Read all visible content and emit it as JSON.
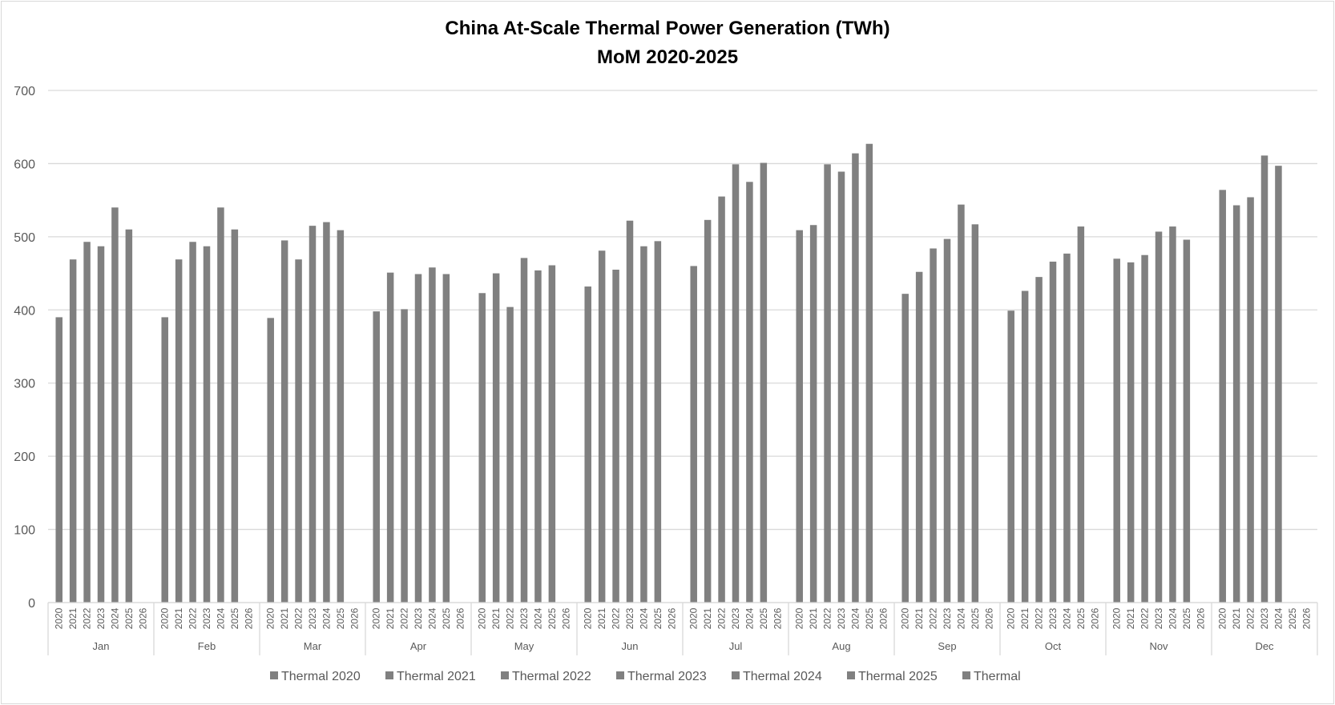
{
  "chart_data": {
    "type": "bar",
    "title": "China At-Scale Thermal Power Generation (TWh)",
    "subtitle": "MoM 2020-2025",
    "ylim": [
      0,
      700
    ],
    "yticks": [
      0,
      100,
      200,
      300,
      400,
      500,
      600,
      700
    ],
    "grid": true,
    "legend_position": "bottom",
    "bar_color": "#808080",
    "grid_color": "#d9d9d9",
    "months": [
      "Jan",
      "Feb",
      "Mar",
      "Apr",
      "May",
      "Jun",
      "Jul",
      "Aug",
      "Sep",
      "Oct",
      "Nov",
      "Dec"
    ],
    "years": [
      "2020",
      "2021",
      "2022",
      "2023",
      "2024",
      "2025",
      "2026"
    ],
    "series": [
      {
        "name": "Thermal 2020"
      },
      {
        "name": "Thermal 2021"
      },
      {
        "name": "Thermal 2022"
      },
      {
        "name": "Thermal 2023"
      },
      {
        "name": "Thermal 2024"
      },
      {
        "name": "Thermal 2025"
      },
      {
        "name": "Thermal"
      }
    ],
    "values": [
      [
        390,
        469,
        493,
        487,
        540,
        510,
        null
      ],
      [
        390,
        469,
        493,
        487,
        540,
        510,
        null
      ],
      [
        389,
        495,
        469,
        515,
        520,
        509,
        null
      ],
      [
        398,
        451,
        401,
        449,
        458,
        449,
        null
      ],
      [
        423,
        450,
        404,
        471,
        454,
        461,
        null
      ],
      [
        432,
        481,
        455,
        522,
        487,
        494,
        null
      ],
      [
        460,
        523,
        555,
        599,
        575,
        601,
        null
      ],
      [
        509,
        516,
        599,
        589,
        614,
        627,
        null
      ],
      [
        422,
        452,
        484,
        497,
        544,
        517,
        null
      ],
      [
        399,
        426,
        445,
        466,
        477,
        514,
        null
      ],
      [
        470,
        465,
        475,
        507,
        514,
        496,
        null
      ],
      [
        564,
        543,
        554,
        611,
        597,
        null,
        null
      ]
    ]
  }
}
